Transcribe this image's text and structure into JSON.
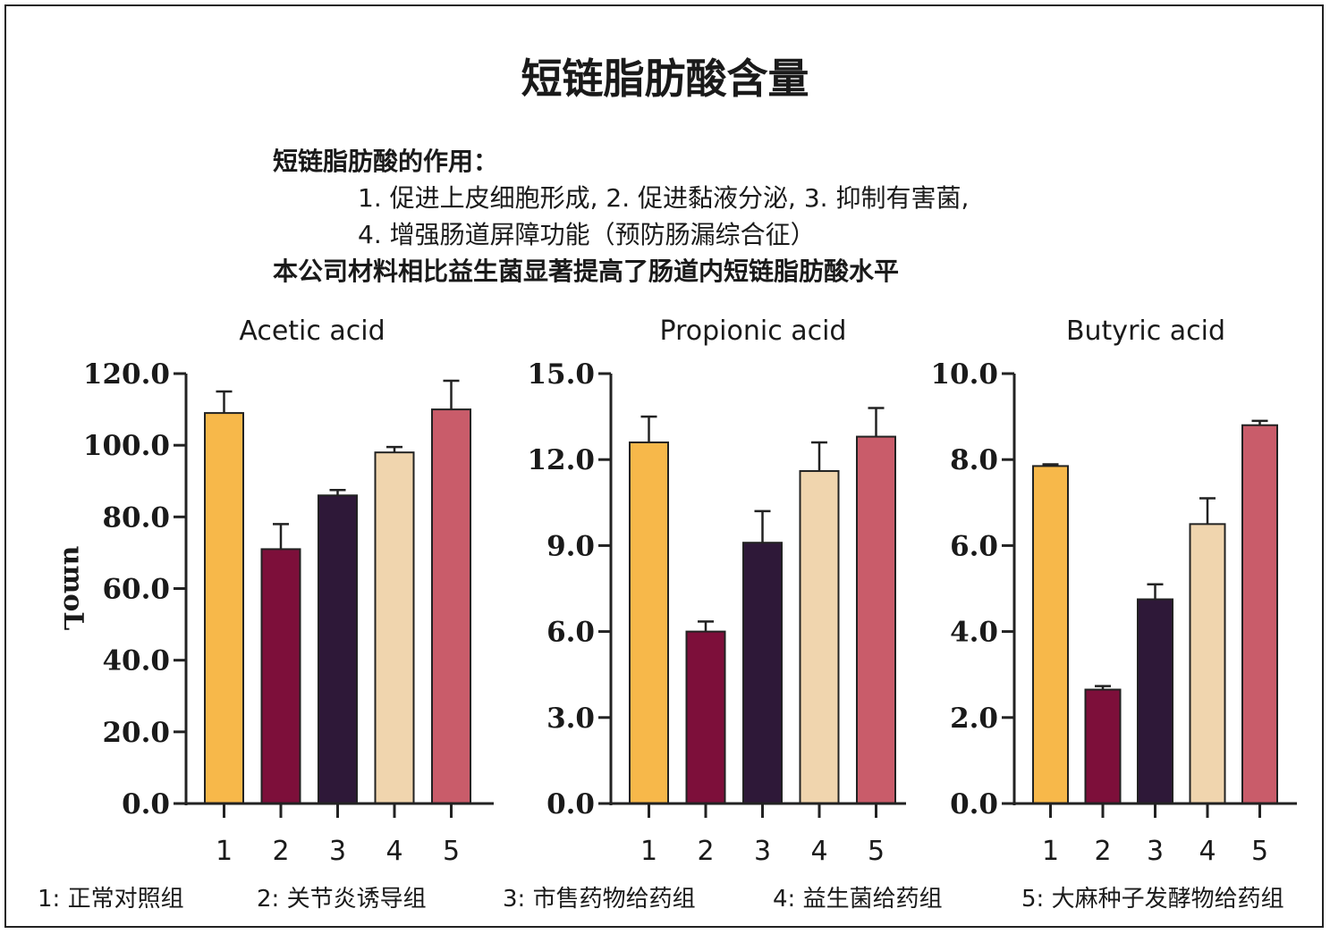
{
  "title": "短链脂肪酸含量",
  "intro": {
    "heading": "短链脂肪酸的作用：",
    "line1": "1. 促进上皮细胞形成, 2. 促进黏液分泌, 3. 抑制有害菌,",
    "line2": "4. 增强肠道屏障功能（预防肠漏综合征）",
    "conclusion": "本公司材料相比益生菌显著提高了肠道内短链脂肪酸水平"
  },
  "colors": [
    "#f7b84a",
    "#7d0f3a",
    "#2e1838",
    "#f0d5ae",
    "#c95c6a"
  ],
  "chart_data": [
    {
      "type": "bar",
      "title": "Acetic acid",
      "ylabel": "umoL",
      "categories": [
        "1",
        "2",
        "3",
        "4",
        "5"
      ],
      "values": [
        109,
        71,
        86,
        98,
        110
      ],
      "errors": [
        6,
        7,
        1.5,
        1.5,
        8
      ],
      "ylim": [
        0,
        120
      ],
      "yticks": [
        "0.0",
        "20.0",
        "40.0",
        "60.0",
        "80.0",
        "100.0",
        "120.0"
      ]
    },
    {
      "type": "bar",
      "title": "Propionic acid",
      "categories": [
        "1",
        "2",
        "3",
        "4",
        "5"
      ],
      "values": [
        12.6,
        6.0,
        9.1,
        11.6,
        12.8
      ],
      "errors": [
        0.9,
        0.35,
        1.1,
        1.0,
        1.0
      ],
      "ylim": [
        0,
        15
      ],
      "yticks": [
        "0.0",
        "3.0",
        "6.0",
        "9.0",
        "12.0",
        "15.0"
      ]
    },
    {
      "type": "bar",
      "title": "Butyric acid",
      "categories": [
        "1",
        "2",
        "3",
        "4",
        "5"
      ],
      "values": [
        7.85,
        2.65,
        4.75,
        6.5,
        8.8
      ],
      "errors": [
        0.04,
        0.08,
        0.35,
        0.6,
        0.1
      ],
      "ylim": [
        0,
        10
      ],
      "yticks": [
        "0.0",
        "2.0",
        "4.0",
        "6.0",
        "8.0",
        "10.0"
      ]
    }
  ],
  "legend": [
    "1: 正常对照组",
    "2: 关节炎诱导组",
    "3: 市售药物给药组",
    "4: 益生菌给药组",
    "5: 大麻种子发酵物给药组"
  ]
}
